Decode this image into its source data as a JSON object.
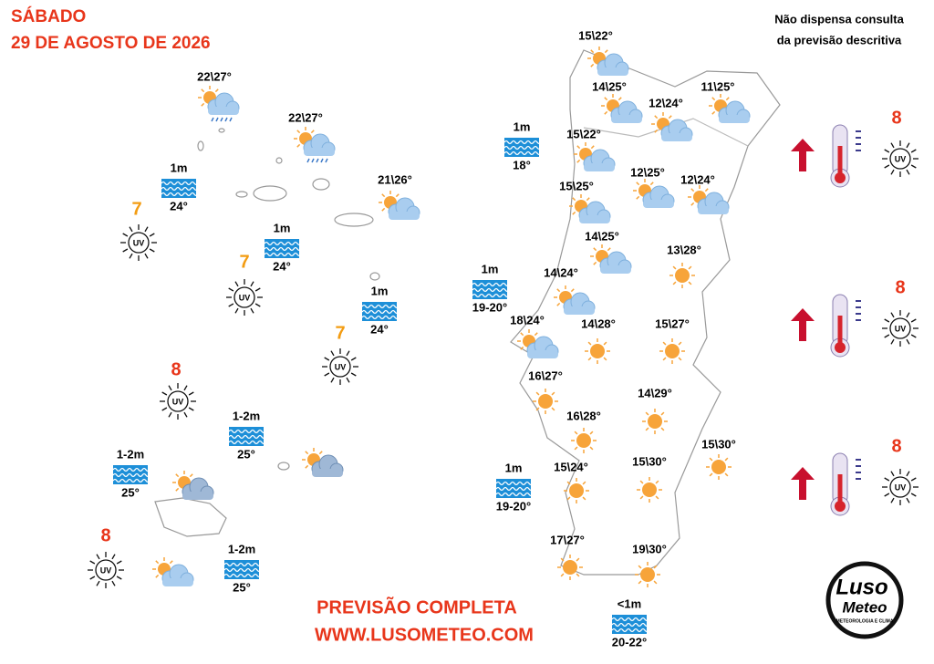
{
  "header": {
    "day": "SÁBADO",
    "date": "29 DE AGOSTO DE 2026"
  },
  "note": [
    "Não dispensa consulta",
    "da previsão descritiva"
  ],
  "footer": [
    "PREVISÃO COMPLETA",
    "WWW.LUSOMETEO.COM"
  ],
  "logo": {
    "line1": "Luso",
    "line2": "Meteo",
    "tagline": "METEOROLOGIA E CLIMA"
  },
  "uv_symbol": "UV",
  "forecasts": [
    {
      "temp": "22\\27°",
      "icon": "sun-rain"
    },
    {
      "temp": "22\\27°",
      "icon": "sun-rain"
    },
    {
      "temp": "21\\26°",
      "icon": "sun-cloud"
    },
    {
      "temp": null,
      "icon": "sun-cloud-dark"
    },
    {
      "temp": null,
      "icon": "sun-cloud-dark"
    },
    {
      "temp": null,
      "icon": "sun-cloud"
    },
    {
      "temp": "15\\22°",
      "icon": "sun-cloud"
    },
    {
      "temp": "14\\25°",
      "icon": "sun-cloud"
    },
    {
      "temp": "12\\24°",
      "icon": "sun-cloud"
    },
    {
      "temp": "11\\25°",
      "icon": "sun-cloud"
    },
    {
      "temp": "15\\22°",
      "icon": "sun-cloud"
    },
    {
      "temp": "12\\25°",
      "icon": "sun-cloud"
    },
    {
      "temp": "12\\24°",
      "icon": "sun-cloud"
    },
    {
      "temp": "15\\25°",
      "icon": "sun-cloud"
    },
    {
      "temp": "14\\25°",
      "icon": "sun-cloud"
    },
    {
      "temp": "13\\28°",
      "icon": "sun"
    },
    {
      "temp": "14\\24°",
      "icon": "sun-cloud"
    },
    {
      "temp": "18\\24°",
      "icon": "sun-cloud"
    },
    {
      "temp": "14\\28°",
      "icon": "sun"
    },
    {
      "temp": "15\\27°",
      "icon": "sun"
    },
    {
      "temp": "16\\27°",
      "icon": "sun"
    },
    {
      "temp": "14\\29°",
      "icon": "sun"
    },
    {
      "temp": "16\\28°",
      "icon": "sun"
    },
    {
      "temp": "15\\30°",
      "icon": "sun"
    },
    {
      "temp": "15\\24°",
      "icon": "sun"
    },
    {
      "temp": "15\\30°",
      "icon": "sun"
    },
    {
      "temp": "17\\27°",
      "icon": "sun"
    },
    {
      "temp": "19\\30°",
      "icon": "sun"
    }
  ],
  "sea": [
    {
      "waves": "1m",
      "temp": "24°"
    },
    {
      "waves": "1m",
      "temp": "24°"
    },
    {
      "waves": "1m",
      "temp": "24°"
    },
    {
      "waves": "1-2m",
      "temp": "25°"
    },
    {
      "waves": "1-2m",
      "temp": "25°"
    },
    {
      "waves": "1-2m",
      "temp": "25°"
    },
    {
      "waves": "1m",
      "temp": "18°"
    },
    {
      "waves": "1m",
      "temp": "19-20°"
    },
    {
      "waves": "1m",
      "temp": "19-20°"
    },
    {
      "waves": "<1m",
      "temp": "20-22°"
    }
  ],
  "uv": [
    7,
    7,
    7,
    8,
    8
  ],
  "uv_trend": [
    {
      "uv": 8,
      "trend": "up"
    },
    {
      "uv": 8,
      "trend": "up"
    },
    {
      "uv": 8,
      "trend": "up"
    }
  ]
}
